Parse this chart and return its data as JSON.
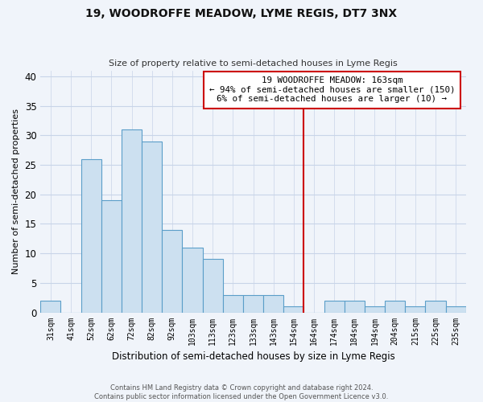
{
  "title": "19, WOODROFFE MEADOW, LYME REGIS, DT7 3NX",
  "subtitle": "Size of property relative to semi-detached houses in Lyme Regis",
  "xlabel": "Distribution of semi-detached houses by size in Lyme Regis",
  "ylabel": "Number of semi-detached properties",
  "categories": [
    "31sqm",
    "41sqm",
    "52sqm",
    "62sqm",
    "72sqm",
    "82sqm",
    "92sqm",
    "103sqm",
    "113sqm",
    "123sqm",
    "133sqm",
    "143sqm",
    "154sqm",
    "164sqm",
    "174sqm",
    "184sqm",
    "194sqm",
    "204sqm",
    "215sqm",
    "225sqm",
    "235sqm"
  ],
  "values": [
    2,
    0,
    26,
    19,
    31,
    29,
    14,
    11,
    9,
    3,
    3,
    3,
    1,
    0,
    2,
    2,
    1,
    2,
    1,
    2,
    1
  ],
  "bar_color": "#cce0f0",
  "bar_edge_color": "#5b9ec9",
  "vline_color": "#cc0000",
  "vline_index": 13,
  "annotation_title": "19 WOODROFFE MEADOW: 163sqm",
  "annotation_line1": "← 94% of semi-detached houses are smaller (150)",
  "annotation_line2": "6% of semi-detached houses are larger (10) →",
  "ylim": [
    0,
    41
  ],
  "yticks": [
    0,
    5,
    10,
    15,
    20,
    25,
    30,
    35,
    40
  ],
  "footer_line1": "Contains HM Land Registry data © Crown copyright and database right 2024.",
  "footer_line2": "Contains public sector information licensed under the Open Government Licence v3.0.",
  "background_color": "#f0f4fa",
  "grid_color": "#c8d4e8"
}
